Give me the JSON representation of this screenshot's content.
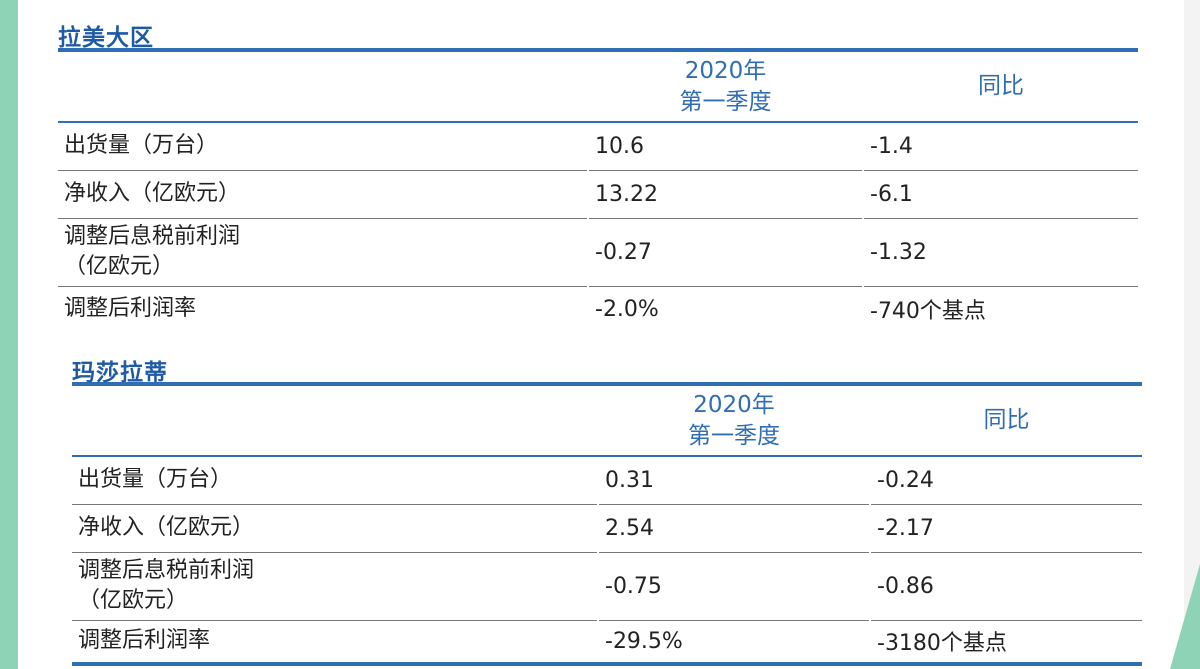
{
  "sections": [
    {
      "title": "拉美大区",
      "header": {
        "col1": "",
        "col2_line1": "2020年",
        "col2_line2": "第一季度",
        "col3": "同比"
      },
      "rows": [
        {
          "label_line1": "出货量（万台）",
          "label_line2": "",
          "value": "10.6",
          "yoy": "-1.4"
        },
        {
          "label_line1": "净收入（亿欧元）",
          "label_line2": "",
          "value": "13.22",
          "yoy": "-6.1"
        },
        {
          "label_line1": "调整后息税前利润",
          "label_line2": "（亿欧元）",
          "value": "-0.27",
          "yoy": "-1.32"
        },
        {
          "label_line1": "调整后利润率",
          "label_line2": "",
          "value": "-2.0%",
          "yoy": "-740个基点"
        }
      ]
    },
    {
      "title": "玛莎拉蒂",
      "header": {
        "col1": "",
        "col2_line1": "2020年",
        "col2_line2": "第一季度",
        "col3": "同比"
      },
      "rows": [
        {
          "label_line1": "出货量（万台）",
          "label_line2": "",
          "value": "0.31",
          "yoy": "-0.24"
        },
        {
          "label_line1": "净收入（亿欧元）",
          "label_line2": "",
          "value": "2.54",
          "yoy": "-2.17"
        },
        {
          "label_line1": "调整后息税前利润",
          "label_line2": "（亿欧元）",
          "value": "-0.75",
          "yoy": "-0.86"
        },
        {
          "label_line1": "调整后利润率",
          "label_line2": "",
          "value": "-29.5%",
          "yoy": "-3180个基点"
        }
      ]
    }
  ]
}
